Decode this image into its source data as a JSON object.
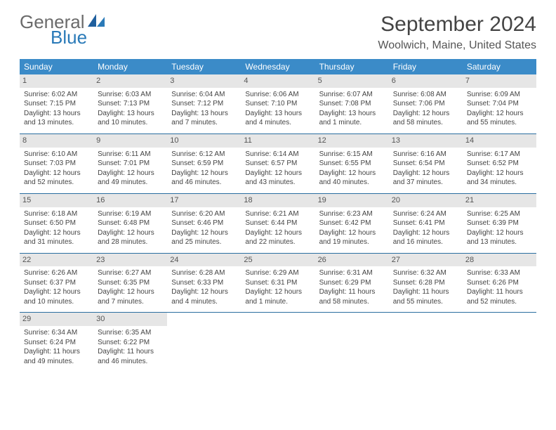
{
  "brand": {
    "general": "General",
    "blue": "Blue"
  },
  "title": "September 2024",
  "location": "Woolwich, Maine, United States",
  "colors": {
    "header_bg": "#3b8bc8",
    "header_text": "#ffffff",
    "daynum_bg": "#e6e6e6",
    "rule": "#2a6ea0",
    "brand_blue": "#2a7ab8",
    "brand_gray": "#6b6b6b"
  },
  "weekdays": [
    "Sunday",
    "Monday",
    "Tuesday",
    "Wednesday",
    "Thursday",
    "Friday",
    "Saturday"
  ],
  "days": [
    {
      "n": "1",
      "sr": "6:02 AM",
      "ss": "7:15 PM",
      "d1": "13 hours",
      "d2": "and 13 minutes."
    },
    {
      "n": "2",
      "sr": "6:03 AM",
      "ss": "7:13 PM",
      "d1": "13 hours",
      "d2": "and 10 minutes."
    },
    {
      "n": "3",
      "sr": "6:04 AM",
      "ss": "7:12 PM",
      "d1": "13 hours",
      "d2": "and 7 minutes."
    },
    {
      "n": "4",
      "sr": "6:06 AM",
      "ss": "7:10 PM",
      "d1": "13 hours",
      "d2": "and 4 minutes."
    },
    {
      "n": "5",
      "sr": "6:07 AM",
      "ss": "7:08 PM",
      "d1": "13 hours",
      "d2": "and 1 minute."
    },
    {
      "n": "6",
      "sr": "6:08 AM",
      "ss": "7:06 PM",
      "d1": "12 hours",
      "d2": "and 58 minutes."
    },
    {
      "n": "7",
      "sr": "6:09 AM",
      "ss": "7:04 PM",
      "d1": "12 hours",
      "d2": "and 55 minutes."
    },
    {
      "n": "8",
      "sr": "6:10 AM",
      "ss": "7:03 PM",
      "d1": "12 hours",
      "d2": "and 52 minutes."
    },
    {
      "n": "9",
      "sr": "6:11 AM",
      "ss": "7:01 PM",
      "d1": "12 hours",
      "d2": "and 49 minutes."
    },
    {
      "n": "10",
      "sr": "6:12 AM",
      "ss": "6:59 PM",
      "d1": "12 hours",
      "d2": "and 46 minutes."
    },
    {
      "n": "11",
      "sr": "6:14 AM",
      "ss": "6:57 PM",
      "d1": "12 hours",
      "d2": "and 43 minutes."
    },
    {
      "n": "12",
      "sr": "6:15 AM",
      "ss": "6:55 PM",
      "d1": "12 hours",
      "d2": "and 40 minutes."
    },
    {
      "n": "13",
      "sr": "6:16 AM",
      "ss": "6:54 PM",
      "d1": "12 hours",
      "d2": "and 37 minutes."
    },
    {
      "n": "14",
      "sr": "6:17 AM",
      "ss": "6:52 PM",
      "d1": "12 hours",
      "d2": "and 34 minutes."
    },
    {
      "n": "15",
      "sr": "6:18 AM",
      "ss": "6:50 PM",
      "d1": "12 hours",
      "d2": "and 31 minutes."
    },
    {
      "n": "16",
      "sr": "6:19 AM",
      "ss": "6:48 PM",
      "d1": "12 hours",
      "d2": "and 28 minutes."
    },
    {
      "n": "17",
      "sr": "6:20 AM",
      "ss": "6:46 PM",
      "d1": "12 hours",
      "d2": "and 25 minutes."
    },
    {
      "n": "18",
      "sr": "6:21 AM",
      "ss": "6:44 PM",
      "d1": "12 hours",
      "d2": "and 22 minutes."
    },
    {
      "n": "19",
      "sr": "6:23 AM",
      "ss": "6:42 PM",
      "d1": "12 hours",
      "d2": "and 19 minutes."
    },
    {
      "n": "20",
      "sr": "6:24 AM",
      "ss": "6:41 PM",
      "d1": "12 hours",
      "d2": "and 16 minutes."
    },
    {
      "n": "21",
      "sr": "6:25 AM",
      "ss": "6:39 PM",
      "d1": "12 hours",
      "d2": "and 13 minutes."
    },
    {
      "n": "22",
      "sr": "6:26 AM",
      "ss": "6:37 PM",
      "d1": "12 hours",
      "d2": "and 10 minutes."
    },
    {
      "n": "23",
      "sr": "6:27 AM",
      "ss": "6:35 PM",
      "d1": "12 hours",
      "d2": "and 7 minutes."
    },
    {
      "n": "24",
      "sr": "6:28 AM",
      "ss": "6:33 PM",
      "d1": "12 hours",
      "d2": "and 4 minutes."
    },
    {
      "n": "25",
      "sr": "6:29 AM",
      "ss": "6:31 PM",
      "d1": "12 hours",
      "d2": "and 1 minute."
    },
    {
      "n": "26",
      "sr": "6:31 AM",
      "ss": "6:29 PM",
      "d1": "11 hours",
      "d2": "and 58 minutes."
    },
    {
      "n": "27",
      "sr": "6:32 AM",
      "ss": "6:28 PM",
      "d1": "11 hours",
      "d2": "and 55 minutes."
    },
    {
      "n": "28",
      "sr": "6:33 AM",
      "ss": "6:26 PM",
      "d1": "11 hours",
      "d2": "and 52 minutes."
    },
    {
      "n": "29",
      "sr": "6:34 AM",
      "ss": "6:24 PM",
      "d1": "11 hours",
      "d2": "and 49 minutes."
    },
    {
      "n": "30",
      "sr": "6:35 AM",
      "ss": "6:22 PM",
      "d1": "11 hours",
      "d2": "and 46 minutes."
    }
  ],
  "labels": {
    "sunrise": "Sunrise:",
    "sunset": "Sunset:",
    "daylight": "Daylight:"
  }
}
